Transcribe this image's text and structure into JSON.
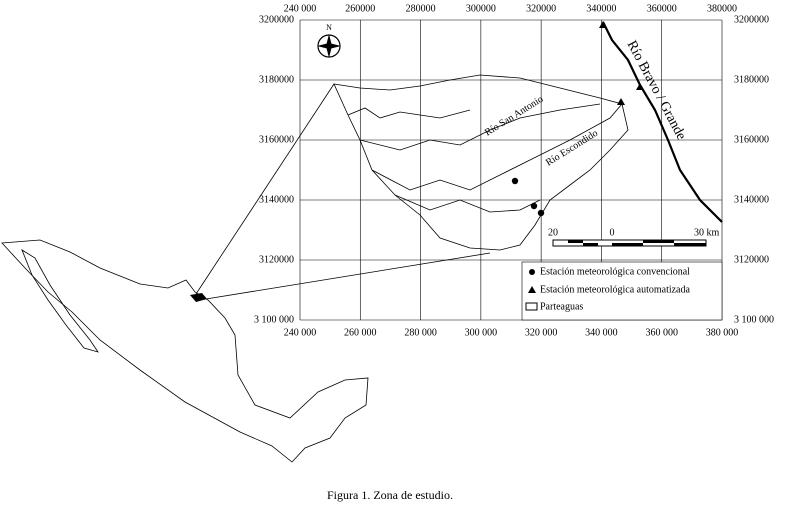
{
  "map": {
    "x_ticks_top": [
      {
        "value": 240000,
        "label": "240 000"
      },
      {
        "value": 260000,
        "label": "260000"
      },
      {
        "value": 280000,
        "label": "280000"
      },
      {
        "value": 300000,
        "label": "300000"
      },
      {
        "value": 320000,
        "label": "320000"
      },
      {
        "value": 340000,
        "label": "340000"
      },
      {
        "value": 360000,
        "label": "360000"
      },
      {
        "value": 380000,
        "label": "380000"
      }
    ],
    "x_ticks_bottom": [
      {
        "value": 240000,
        "label": "240 000"
      },
      {
        "value": 260000,
        "label": "260 000"
      },
      {
        "value": 280000,
        "label": "280 000"
      },
      {
        "value": 300000,
        "label": "300 000"
      },
      {
        "value": 320000,
        "label": "320 000"
      },
      {
        "value": 340000,
        "label": "340 000"
      },
      {
        "value": 360000,
        "label": "360 000"
      },
      {
        "value": 380000,
        "label": "380 000"
      }
    ],
    "y_ticks_left": [
      3200000,
      3180000,
      3160000,
      3140000,
      3120000,
      {
        "value": 3100000,
        "label": "3 100 000"
      }
    ],
    "y_ticks_right": [
      3200000,
      3180000,
      3160000,
      3140000,
      3120000,
      {
        "value": 3100000,
        "label": "3 100 000"
      }
    ],
    "north": "N",
    "rivers": [
      "Río San Antonio",
      "Río Escondido",
      "Río Bravo / Grande"
    ],
    "scale_labels": [
      "20",
      "0",
      "30 km"
    ],
    "legend": [
      "Estación meteorológica convencional",
      "Estación meteorológica automatizada",
      "Parteaguas"
    ],
    "caption": "Figura 1. Zona de estudio."
  }
}
